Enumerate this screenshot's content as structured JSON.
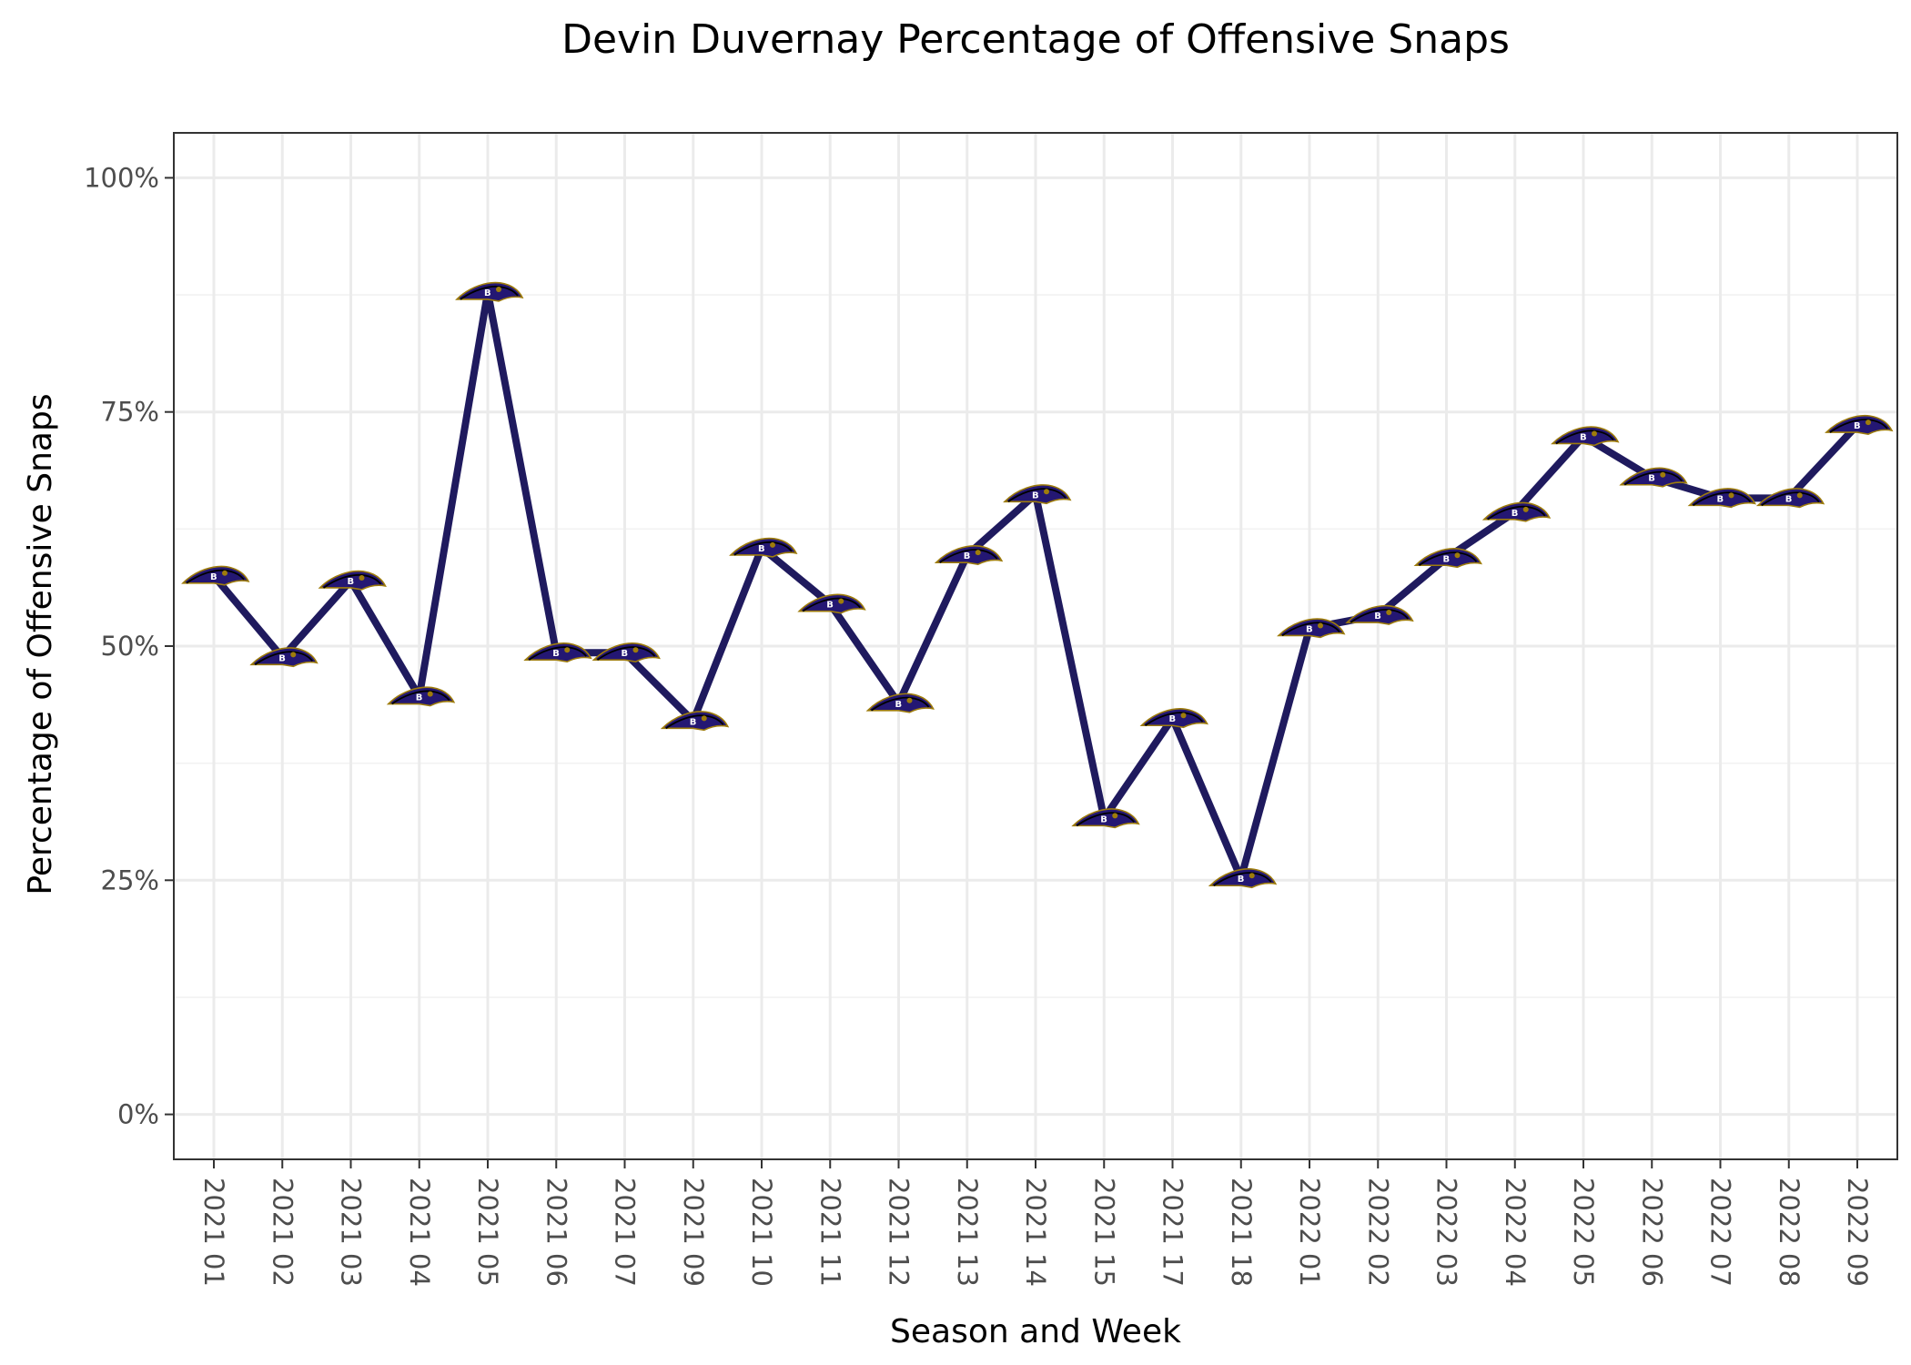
{
  "chart_data": {
    "type": "line",
    "title": "Devin Duvernay Percentage of Offensive Snaps",
    "xlabel": "Season and Week",
    "ylabel": "Percentage of Offensive Snaps",
    "categories": [
      "2021 01",
      "2021 02",
      "2021 03",
      "2021 04",
      "2021 05",
      "2021 06",
      "2021 07",
      "2021 09",
      "2021 10",
      "2021 11",
      "2021 12",
      "2021 13",
      "2021 14",
      "2021 15",
      "2021 17",
      "2021 18",
      "2022 01",
      "2022 02",
      "2022 03",
      "2022 04",
      "2022 05",
      "2022 06",
      "2022 07",
      "2022 08",
      "2022 09"
    ],
    "values": [
      57.5,
      48.8,
      57.0,
      44.6,
      87.8,
      49.3,
      49.3,
      42.0,
      60.5,
      54.5,
      43.9,
      59.7,
      66.2,
      31.6,
      42.3,
      25.2,
      51.9,
      53.3,
      59.4,
      64.3,
      72.4,
      68.0,
      65.8,
      65.8,
      73.6
    ],
    "ylim": [
      -4.8,
      104.8
    ],
    "y_ticks": [
      0,
      25,
      50,
      75,
      100
    ],
    "y_tick_labels": [
      "0%",
      "25%",
      "50%",
      "75%",
      "100%"
    ],
    "y_minor_ticks": [
      12.5,
      37.5,
      62.5,
      87.5
    ],
    "grid": true,
    "legend": "none",
    "line_color": "#1f1a5e",
    "marker": "ravens-logo-icon"
  }
}
